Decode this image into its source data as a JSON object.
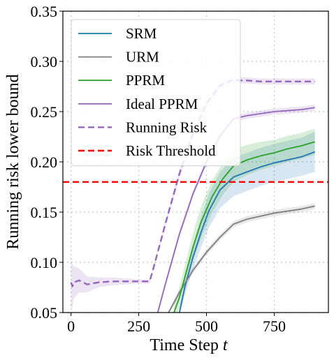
{
  "chart_data": {
    "type": "line",
    "xlabel": "Time Step",
    "xlabel_var": "t",
    "ylabel": "Running risk lower bound",
    "xlim": [
      -30,
      950
    ],
    "ylim": [
      0.05,
      0.35
    ],
    "x_ticks": [
      "0",
      "250",
      "500",
      "750"
    ],
    "x_tick_values": [
      0,
      250,
      500,
      750
    ],
    "y_ticks": [
      "0.05",
      "0.10",
      "0.15",
      "0.20",
      "0.25",
      "0.30",
      "0.35"
    ],
    "y_tick_values": [
      0.05,
      0.1,
      0.15,
      0.2,
      0.25,
      0.3,
      0.35
    ],
    "grid": true,
    "legend_position": "top-left",
    "series": [
      {
        "name": "SRM",
        "color": "#1f77b4",
        "style": "solid",
        "band": true,
        "x": [
          400,
          420,
          450,
          480,
          510,
          550,
          600,
          650,
          700,
          750,
          800,
          850,
          900
        ],
        "y": [
          0.05,
          0.075,
          0.105,
          0.13,
          0.152,
          0.172,
          0.185,
          0.19,
          0.195,
          0.199,
          0.202,
          0.205,
          0.21
        ],
        "err": [
          0.004,
          0.008,
          0.012,
          0.015,
          0.017,
          0.018,
          0.019,
          0.019,
          0.019,
          0.019,
          0.019,
          0.019,
          0.02
        ]
      },
      {
        "name": "URM",
        "color": "#7f7f7f",
        "style": "solid",
        "band": true,
        "x": [
          360,
          400,
          450,
          500,
          550,
          600,
          650,
          700,
          750,
          800,
          850,
          900
        ],
        "y": [
          0.05,
          0.07,
          0.092,
          0.11,
          0.125,
          0.138,
          0.143,
          0.146,
          0.149,
          0.151,
          0.153,
          0.156
        ],
        "err": [
          0.002,
          0.003,
          0.003,
          0.003,
          0.003,
          0.003,
          0.003,
          0.003,
          0.003,
          0.003,
          0.003,
          0.003
        ]
      },
      {
        "name": "PPRM",
        "color": "#2ca02c",
        "style": "solid",
        "band": true,
        "x": [
          380,
          400,
          450,
          480,
          520,
          560,
          600,
          650,
          700,
          750,
          800,
          850,
          900
        ],
        "y": [
          0.05,
          0.065,
          0.115,
          0.14,
          0.165,
          0.183,
          0.196,
          0.202,
          0.206,
          0.209,
          0.213,
          0.216,
          0.22
        ],
        "err": [
          0.008,
          0.01,
          0.014,
          0.016,
          0.016,
          0.016,
          0.016,
          0.015,
          0.014,
          0.013,
          0.013,
          0.013,
          0.013
        ]
      },
      {
        "name": "Ideal PPRM",
        "color": "#9467bd",
        "style": "solid",
        "band": true,
        "x": [
          320,
          350,
          400,
          450,
          500,
          550,
          600,
          650,
          700,
          750,
          800,
          850,
          900
        ],
        "y": [
          0.05,
          0.08,
          0.128,
          0.168,
          0.2,
          0.226,
          0.243,
          0.246,
          0.248,
          0.25,
          0.251,
          0.252,
          0.254
        ],
        "err": [
          0.003,
          0.003,
          0.003,
          0.003,
          0.003,
          0.003,
          0.003,
          0.003,
          0.003,
          0.003,
          0.003,
          0.003,
          0.003
        ]
      },
      {
        "name": "Running Risk",
        "color": "#9467bd",
        "style": "dashed",
        "band": true,
        "x": [
          0,
          5,
          10,
          30,
          60,
          100,
          150,
          200,
          250,
          290,
          300,
          350,
          400,
          450,
          500,
          550,
          590,
          600,
          650,
          700,
          750,
          800,
          850,
          900
        ],
        "y": [
          0.08,
          0.076,
          0.08,
          0.082,
          0.078,
          0.08,
          0.081,
          0.081,
          0.081,
          0.081,
          0.09,
          0.14,
          0.188,
          0.228,
          0.258,
          0.276,
          0.281,
          0.281,
          0.281,
          0.28,
          0.28,
          0.28,
          0.28,
          0.28
        ],
        "err": [
          0.025,
          0.022,
          0.016,
          0.012,
          0.008,
          0.005,
          0.004,
          0.003,
          0.002,
          0.002,
          0.002,
          0.003,
          0.004,
          0.005,
          0.005,
          0.004,
          0.003,
          0.003,
          0.003,
          0.003,
          0.003,
          0.003,
          0.003,
          0.003
        ]
      },
      {
        "name": "Risk Threshold",
        "color": "#ff0000",
        "style": "dashed",
        "band": false,
        "hline": 0.18
      }
    ]
  }
}
